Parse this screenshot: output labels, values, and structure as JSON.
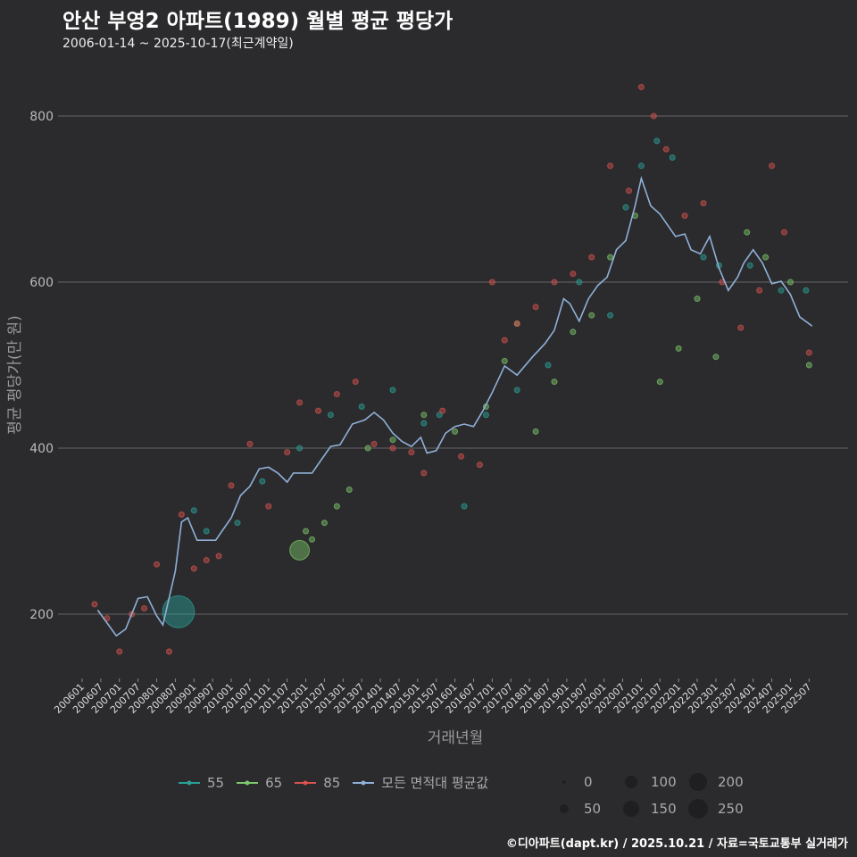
{
  "title": "안산 부영2 아파트(1989) 월별 평균 평당가",
  "subtitle": "2006-01-14 ~ 2025-10-17(최근계약일)",
  "footer": "©디아파트(dapt.kr) / 2025.10.21 / 자료=국토교통부 실거래가",
  "chart_data": {
    "type": "scatter+line",
    "xlabel": "거래년월",
    "ylabel": "평균 평당가(만 원)",
    "x_start": "200601",
    "x_ticks": [
      "200601",
      "200607",
      "200701",
      "200707",
      "200801",
      "200807",
      "200901",
      "200907",
      "201001",
      "201007",
      "201101",
      "201107",
      "201201",
      "201207",
      "201301",
      "201307",
      "201401",
      "201407",
      "201501",
      "201507",
      "201601",
      "201607",
      "201701",
      "201707",
      "201801",
      "201807",
      "201901",
      "201907",
      "202001",
      "202007",
      "202101",
      "202107",
      "202201",
      "202207",
      "202301",
      "202307",
      "202401",
      "202407",
      "202501",
      "202507"
    ],
    "y_ticks": [
      200,
      400,
      600,
      800
    ],
    "ylim": [
      120,
      850
    ],
    "grid": true,
    "series": [
      {
        "name": "55",
        "color": "#2aa198",
        "points": [
          [
            31,
            203,
            80
          ],
          [
            36,
            325,
            10
          ],
          [
            40,
            300,
            10
          ],
          [
            50,
            310,
            10
          ],
          [
            58,
            360,
            10
          ],
          [
            70,
            400,
            10
          ],
          [
            80,
            440,
            10
          ],
          [
            90,
            450,
            10
          ],
          [
            100,
            470,
            10
          ],
          [
            110,
            430,
            10
          ],
          [
            115,
            440,
            10
          ],
          [
            123,
            330,
            10
          ],
          [
            130,
            440,
            10
          ],
          [
            140,
            470,
            10
          ],
          [
            150,
            500,
            10
          ],
          [
            160,
            600,
            10
          ],
          [
            170,
            560,
            10
          ],
          [
            175,
            690,
            10
          ],
          [
            180,
            740,
            10
          ],
          [
            185,
            770,
            10
          ],
          [
            190,
            750,
            10
          ],
          [
            200,
            630,
            10
          ],
          [
            205,
            620,
            10
          ],
          [
            215,
            620,
            10
          ],
          [
            225,
            590,
            10
          ],
          [
            233,
            590,
            10
          ]
        ]
      },
      {
        "name": "65",
        "color": "#7dc86a",
        "points": [
          [
            70,
            277,
            30
          ],
          [
            72,
            300,
            10
          ],
          [
            74,
            290,
            10
          ],
          [
            78,
            310,
            10
          ],
          [
            82,
            330,
            10
          ],
          [
            86,
            350,
            10
          ],
          [
            92,
            400,
            10
          ],
          [
            100,
            410,
            10
          ],
          [
            110,
            440,
            10
          ],
          [
            120,
            420,
            10
          ],
          [
            130,
            450,
            10
          ],
          [
            136,
            505,
            10
          ],
          [
            140,
            550,
            10
          ],
          [
            146,
            420,
            10
          ],
          [
            152,
            480,
            10
          ],
          [
            158,
            540,
            10
          ],
          [
            164,
            560,
            10
          ],
          [
            170,
            630,
            10
          ],
          [
            178,
            680,
            10
          ],
          [
            186,
            480,
            10
          ],
          [
            192,
            520,
            10
          ],
          [
            198,
            580,
            10
          ],
          [
            204,
            510,
            10
          ],
          [
            214,
            660,
            10
          ],
          [
            220,
            630,
            10
          ],
          [
            228,
            600,
            10
          ],
          [
            234,
            500,
            10
          ]
        ]
      },
      {
        "name": "85",
        "color": "#d9534f",
        "points": [
          [
            4,
            212,
            10
          ],
          [
            8,
            195,
            10
          ],
          [
            12,
            155,
            10
          ],
          [
            16,
            200,
            10
          ],
          [
            20,
            207,
            10
          ],
          [
            24,
            260,
            10
          ],
          [
            28,
            155,
            10
          ],
          [
            32,
            320,
            10
          ],
          [
            36,
            255,
            10
          ],
          [
            40,
            265,
            10
          ],
          [
            44,
            270,
            10
          ],
          [
            48,
            355,
            10
          ],
          [
            54,
            405,
            10
          ],
          [
            60,
            330,
            10
          ],
          [
            66,
            395,
            10
          ],
          [
            70,
            455,
            10
          ],
          [
            76,
            445,
            10
          ],
          [
            82,
            465,
            10
          ],
          [
            88,
            480,
            10
          ],
          [
            94,
            405,
            10
          ],
          [
            100,
            400,
            10
          ],
          [
            106,
            395,
            10
          ],
          [
            110,
            370,
            10
          ],
          [
            116,
            445,
            10
          ],
          [
            122,
            390,
            10
          ],
          [
            128,
            380,
            10
          ],
          [
            132,
            600,
            10
          ],
          [
            136,
            530,
            10
          ],
          [
            140,
            550,
            10
          ],
          [
            146,
            570,
            10
          ],
          [
            152,
            600,
            10
          ],
          [
            158,
            610,
            10
          ],
          [
            164,
            630,
            10
          ],
          [
            170,
            740,
            10
          ],
          [
            176,
            710,
            10
          ],
          [
            180,
            835,
            10
          ],
          [
            184,
            800,
            10
          ],
          [
            188,
            760,
            10
          ],
          [
            194,
            680,
            10
          ],
          [
            200,
            695,
            10
          ],
          [
            206,
            600,
            10
          ],
          [
            212,
            545,
            10
          ],
          [
            218,
            590,
            10
          ],
          [
            222,
            740,
            10
          ],
          [
            226,
            660,
            10
          ],
          [
            234,
            515,
            10
          ]
        ]
      }
    ],
    "average": {
      "name": "모든 면적대 평균값",
      "color": "#8fb0d8",
      "points": [
        [
          5,
          205
        ],
        [
          11,
          174
        ],
        [
          14,
          182
        ],
        [
          18,
          219
        ],
        [
          21,
          221
        ],
        [
          24,
          198
        ],
        [
          26,
          187
        ],
        [
          30,
          252
        ],
        [
          32,
          311
        ],
        [
          34,
          316
        ],
        [
          37,
          289
        ],
        [
          40,
          289
        ],
        [
          43,
          289
        ],
        [
          45,
          300
        ],
        [
          48,
          316
        ],
        [
          51,
          343
        ],
        [
          54,
          354
        ],
        [
          57,
          375
        ],
        [
          60,
          377
        ],
        [
          63,
          370
        ],
        [
          66,
          359
        ],
        [
          68,
          370
        ],
        [
          74,
          370
        ],
        [
          77,
          386
        ],
        [
          80,
          402
        ],
        [
          83,
          404
        ],
        [
          87,
          429
        ],
        [
          91,
          434
        ],
        [
          94,
          443
        ],
        [
          97,
          434
        ],
        [
          100,
          418
        ],
        [
          103,
          408
        ],
        [
          106,
          402
        ],
        [
          109,
          413
        ],
        [
          111,
          394
        ],
        [
          114,
          397
        ],
        [
          117,
          418
        ],
        [
          120,
          426
        ],
        [
          123,
          429
        ],
        [
          126,
          426
        ],
        [
          129,
          445
        ],
        [
          132,
          467
        ],
        [
          136,
          499
        ],
        [
          140,
          488
        ],
        [
          145,
          510
        ],
        [
          149,
          526
        ],
        [
          152,
          542
        ],
        [
          155,
          580
        ],
        [
          157,
          574
        ],
        [
          160,
          553
        ],
        [
          163,
          580
        ],
        [
          166,
          596
        ],
        [
          169,
          606
        ],
        [
          172,
          639
        ],
        [
          175,
          650
        ],
        [
          178,
          692
        ],
        [
          180,
          725
        ],
        [
          183,
          692
        ],
        [
          186,
          682
        ],
        [
          191,
          655
        ],
        [
          194,
          658
        ],
        [
          196,
          639
        ],
        [
          199,
          634
        ],
        [
          202,
          655
        ],
        [
          205,
          617
        ],
        [
          208,
          590
        ],
        [
          211,
          606
        ],
        [
          213,
          623
        ],
        [
          216,
          639
        ],
        [
          219,
          623
        ],
        [
          222,
          598
        ],
        [
          225,
          601
        ],
        [
          228,
          585
        ],
        [
          231,
          558
        ],
        [
          235,
          547
        ]
      ]
    },
    "size_legend": [
      0,
      50,
      100,
      150,
      200,
      250
    ]
  }
}
